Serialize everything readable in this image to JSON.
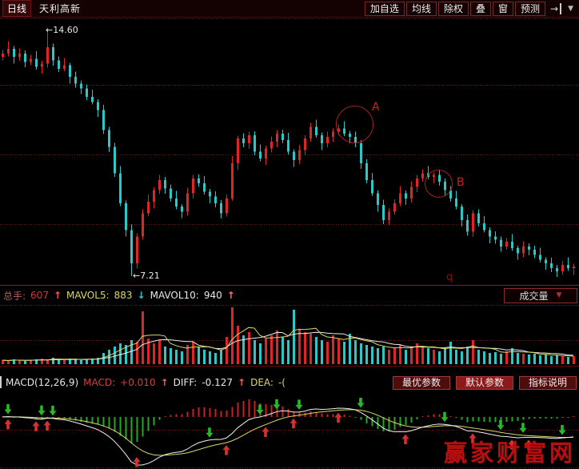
{
  "toolbar": {
    "period": "日线",
    "stock_name": "天利高新",
    "buttons": [
      "加自选",
      "均线",
      "除权",
      "叠",
      "窗",
      "预测"
    ],
    "nav_icon": "→",
    "dropdown_icon": "▼"
  },
  "main_chart": {
    "high_label": "←14.60",
    "low_label": "←7.21",
    "annotation_a": "A",
    "annotation_b": "B",
    "watermark_q": "q"
  },
  "volume_header": {
    "zongshou_label": "总手:",
    "zongshou_value": "607",
    "zongshou_arrow": "↑",
    "mavol5_label": "MAVOL5:",
    "mavol5_value": "883",
    "mavol5_arrow": "↓",
    "mavol10_label": "MAVOL10:",
    "mavol10_value": "940",
    "mavol10_arrow": "↑",
    "selector_label": "成交量",
    "selector_arrow": "▼"
  },
  "macd_header": {
    "indicator": "MACD(12,26,9)",
    "macd_label": "MACD:",
    "macd_value": "+0.010",
    "macd_arrow": "↑",
    "diff_label": "DIFF:",
    "diff_value": "-0.127",
    "diff_arrow": "↑",
    "dea_label": "DEA:",
    "dea_value": "-(",
    "buttons": [
      "最优参数",
      "默认参数",
      "指标说明"
    ]
  },
  "watermark": "赢家财富网",
  "colors": {
    "up": "#dd2626",
    "down": "#2cc8c8",
    "grid": "#7d1212",
    "separator": "#9b1414",
    "vol_ma5": "#d8d868",
    "vol_ma10": "#ececec",
    "diff_line": "#f0f0f0",
    "dea_line": "#d8d868",
    "hist_up": "#cc2222",
    "hist_down": "#22aa22",
    "arrow_up": "#d93030",
    "arrow_down": "#28b828"
  },
  "chart_data": {
    "type": "candlestick+volume+macd",
    "price_axis": {
      "high": 14.6,
      "low": 7.21
    },
    "ohlc_estimated": true,
    "first_open": 13.8,
    "opens_rule": "previous_close",
    "closes": [
      13.9,
      14.05,
      13.8,
      13.9,
      13.65,
      13.75,
      13.5,
      13.6,
      14.1,
      13.7,
      13.45,
      13.55,
      13.2,
      13.0,
      12.85,
      12.6,
      12.45,
      12.2,
      11.6,
      11.1,
      10.3,
      9.4,
      8.6,
      7.6,
      8.4,
      9.1,
      9.45,
      9.8,
      10.1,
      9.85,
      9.55,
      9.3,
      9.15,
      9.7,
      10.15,
      10.0,
      9.75,
      9.6,
      9.4,
      9.1,
      9.55,
      10.6,
      11.35,
      11.2,
      11.45,
      10.95,
      10.75,
      11.05,
      11.25,
      11.5,
      11.3,
      10.95,
      10.7,
      11.0,
      11.35,
      11.7,
      11.45,
      11.2,
      11.4,
      11.55,
      11.65,
      11.5,
      11.4,
      11.2,
      10.6,
      10.1,
      9.7,
      9.35,
      8.9,
      9.15,
      9.4,
      9.7,
      9.55,
      9.9,
      10.15,
      10.3,
      10.2,
      10.25,
      10.05,
      9.8,
      9.55,
      9.3,
      8.9,
      8.55,
      9.1,
      8.8,
      8.6,
      8.4,
      8.3,
      8.1,
      8.25,
      8.05,
      7.9,
      8.1,
      8.0,
      7.85,
      7.7,
      7.6,
      7.45,
      7.35,
      7.55,
      7.45,
      7.5
    ],
    "high_overrides": {
      "8": 14.6
    },
    "low_overrides": {
      "23": 7.21
    },
    "volumes": [
      5,
      4,
      6,
      5,
      4,
      5,
      6,
      7,
      5,
      8,
      6,
      5,
      7,
      6,
      5,
      6,
      7,
      8,
      14,
      18,
      22,
      26,
      24,
      30,
      28,
      66,
      32,
      26,
      30,
      22,
      20,
      18,
      16,
      24,
      28,
      22,
      18,
      16,
      14,
      18,
      34,
      71,
      48,
      36,
      40,
      30,
      26,
      32,
      36,
      42,
      34,
      30,
      68,
      44,
      40,
      38,
      34,
      30,
      28,
      36,
      32,
      28,
      38,
      30,
      26,
      24,
      22,
      20,
      22,
      18,
      20,
      24,
      18,
      22,
      26,
      22,
      20,
      18,
      16,
      20,
      28,
      18,
      16,
      22,
      30,
      18,
      16,
      14,
      15,
      13,
      16,
      20,
      14,
      13,
      12,
      13,
      11,
      12,
      10,
      11,
      10,
      9,
      10
    ],
    "volume_stats": {
      "zongshou": 607,
      "mavol5": 883,
      "mavol10": 940
    },
    "macd_params": [
      12,
      26,
      9
    ],
    "macd_display": {
      "macd": "+0.010",
      "diff": "-0.127",
      "dea": "-("
    },
    "signal_arrows": [
      {
        "i": 1,
        "dir": "up"
      },
      {
        "i": 1,
        "dir": "down"
      },
      {
        "i": 6,
        "dir": "up"
      },
      {
        "i": 7,
        "dir": "down"
      },
      {
        "i": 8,
        "dir": "up"
      },
      {
        "i": 9,
        "dir": "down"
      },
      {
        "i": 24,
        "dir": "up"
      },
      {
        "i": 37,
        "dir": "down"
      },
      {
        "i": 40,
        "dir": "up"
      },
      {
        "i": 46,
        "dir": "down"
      },
      {
        "i": 47,
        "dir": "up"
      },
      {
        "i": 49,
        "dir": "down"
      },
      {
        "i": 52,
        "dir": "up"
      },
      {
        "i": 53,
        "dir": "down"
      },
      {
        "i": 60,
        "dir": "up"
      },
      {
        "i": 64,
        "dir": "down"
      },
      {
        "i": 72,
        "dir": "up"
      },
      {
        "i": 79,
        "dir": "down"
      },
      {
        "i": 84,
        "dir": "up"
      },
      {
        "i": 89,
        "dir": "down"
      },
      {
        "i": 91,
        "dir": "up"
      },
      {
        "i": 93,
        "dir": "down"
      },
      {
        "i": 94,
        "dir": "up"
      },
      {
        "i": 100,
        "dir": "down"
      }
    ]
  }
}
